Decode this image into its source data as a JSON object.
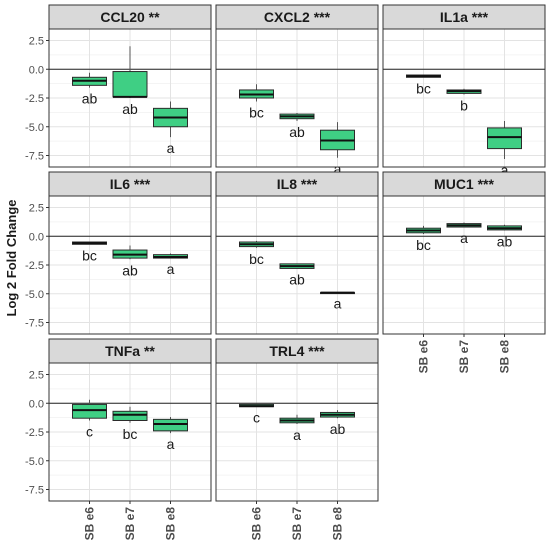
{
  "chart_data": {
    "type": "boxplot",
    "ylabel": "Log 2 Fold Change",
    "ylim": [
      -8.5,
      3.5
    ],
    "yticks": [
      2.5,
      0.0,
      -2.5,
      -5.0,
      -7.5
    ],
    "ytick_labels": [
      "2.5",
      "0.0",
      "-2.5",
      "-5.0",
      "-7.5"
    ],
    "categories": [
      "SB e6",
      "SB e7",
      "SB e8"
    ],
    "grid": true,
    "reference_line": 0,
    "box_fill": "#3fcf84",
    "box_stroke": "#2b2b2b",
    "strip_fill": "#d9d9d9",
    "panels": [
      {
        "title": "CCL20 **",
        "boxes": [
          {
            "category": "SB e6",
            "q1": -1.4,
            "median": -1.0,
            "q3": -0.7,
            "whisker_low": -1.6,
            "whisker_high": -0.3,
            "letter": "ab"
          },
          {
            "category": "SB e7",
            "q1": -2.4,
            "median": -2.4,
            "q3": -0.2,
            "whisker_low": -2.5,
            "whisker_high": 2.0,
            "letter": "ab"
          },
          {
            "category": "SB e8",
            "q1": -5.0,
            "median": -4.2,
            "q3": -3.4,
            "whisker_low": -5.9,
            "whisker_high": -2.8,
            "letter": "a"
          }
        ]
      },
      {
        "title": "CXCL2 ***",
        "boxes": [
          {
            "category": "SB e6",
            "q1": -2.5,
            "median": -2.2,
            "q3": -1.8,
            "whisker_low": -2.8,
            "whisker_high": -1.3,
            "letter": "bc"
          },
          {
            "category": "SB e7",
            "q1": -4.3,
            "median": -4.1,
            "q3": -3.9,
            "whisker_low": -4.5,
            "whisker_high": -3.8,
            "letter": "ab"
          },
          {
            "category": "SB e8",
            "q1": -7.0,
            "median": -6.2,
            "q3": -5.3,
            "whisker_low": -7.7,
            "whisker_high": -4.6,
            "letter": "a"
          }
        ]
      },
      {
        "title": "IL1a ***",
        "boxes": [
          {
            "category": "SB e6",
            "q1": -0.7,
            "median": -0.6,
            "q3": -0.5,
            "whisker_low": -0.7,
            "whisker_high": -0.5,
            "letter": "bc"
          },
          {
            "category": "SB e7",
            "q1": -2.1,
            "median": -1.9,
            "q3": -1.8,
            "whisker_low": -2.2,
            "whisker_high": -1.7,
            "letter": "b"
          },
          {
            "category": "SB e8",
            "q1": -6.9,
            "median": -5.9,
            "q3": -5.1,
            "whisker_low": -7.8,
            "whisker_high": -4.5,
            "letter": "a"
          }
        ]
      },
      {
        "title": "IL6 ***",
        "boxes": [
          {
            "category": "SB e6",
            "q1": -0.7,
            "median": -0.6,
            "q3": -0.5,
            "whisker_low": -0.7,
            "whisker_high": -0.5,
            "letter": "bc"
          },
          {
            "category": "SB e7",
            "q1": -1.9,
            "median": -1.6,
            "q3": -1.2,
            "whisker_low": -2.0,
            "whisker_high": -0.8,
            "letter": "ab"
          },
          {
            "category": "SB e8",
            "q1": -1.9,
            "median": -1.8,
            "q3": -1.6,
            "whisker_low": -1.9,
            "whisker_high": -1.5,
            "letter": "a"
          }
        ]
      },
      {
        "title": "IL8 ***",
        "boxes": [
          {
            "category": "SB e6",
            "q1": -0.9,
            "median": -0.7,
            "q3": -0.5,
            "whisker_low": -1.0,
            "whisker_high": -0.4,
            "letter": "bc"
          },
          {
            "category": "SB e7",
            "q1": -2.8,
            "median": -2.6,
            "q3": -2.4,
            "whisker_low": -2.8,
            "whisker_high": -2.4,
            "letter": "ab"
          },
          {
            "category": "SB e8",
            "q1": -4.9,
            "median": -4.9,
            "q3": -4.9,
            "whisker_low": -4.9,
            "whisker_high": -4.9,
            "letter": "a"
          }
        ]
      },
      {
        "title": "MUC1 ***",
        "boxes": [
          {
            "category": "SB e6",
            "q1": 0.3,
            "median": 0.5,
            "q3": 0.7,
            "whisker_low": 0.2,
            "whisker_high": 0.9,
            "letter": "bc"
          },
          {
            "category": "SB e7",
            "q1": 0.8,
            "median": 0.95,
            "q3": 1.1,
            "whisker_low": 0.8,
            "whisker_high": 1.2,
            "letter": "a"
          },
          {
            "category": "SB e8",
            "q1": 0.55,
            "median": 0.7,
            "q3": 0.9,
            "whisker_low": 0.5,
            "whisker_high": 1.0,
            "letter": "ab"
          }
        ]
      },
      {
        "title": "TNFa **",
        "boxes": [
          {
            "category": "SB e6",
            "q1": -1.3,
            "median": -0.6,
            "q3": -0.1,
            "whisker_low": -1.5,
            "whisker_high": 0.3,
            "letter": "c"
          },
          {
            "category": "SB e7",
            "q1": -1.5,
            "median": -1.0,
            "q3": -0.7,
            "whisker_low": -1.7,
            "whisker_high": -0.3,
            "letter": "bc"
          },
          {
            "category": "SB e8",
            "q1": -2.4,
            "median": -1.8,
            "q3": -1.4,
            "whisker_low": -2.6,
            "whisker_high": -1.2,
            "letter": "a"
          }
        ]
      },
      {
        "title": "TRL4 ***",
        "boxes": [
          {
            "category": "SB e6",
            "q1": -0.3,
            "median": -0.25,
            "q3": -0.1,
            "whisker_low": -0.3,
            "whisker_high": -0.1,
            "letter": "c"
          },
          {
            "category": "SB e7",
            "q1": -1.7,
            "median": -1.5,
            "q3": -1.3,
            "whisker_low": -1.8,
            "whisker_high": -1.0,
            "letter": "a"
          },
          {
            "category": "SB e8",
            "q1": -1.2,
            "median": -1.0,
            "q3": -0.8,
            "whisker_low": -1.3,
            "whisker_high": -0.6,
            "letter": "ab"
          }
        ]
      }
    ]
  }
}
